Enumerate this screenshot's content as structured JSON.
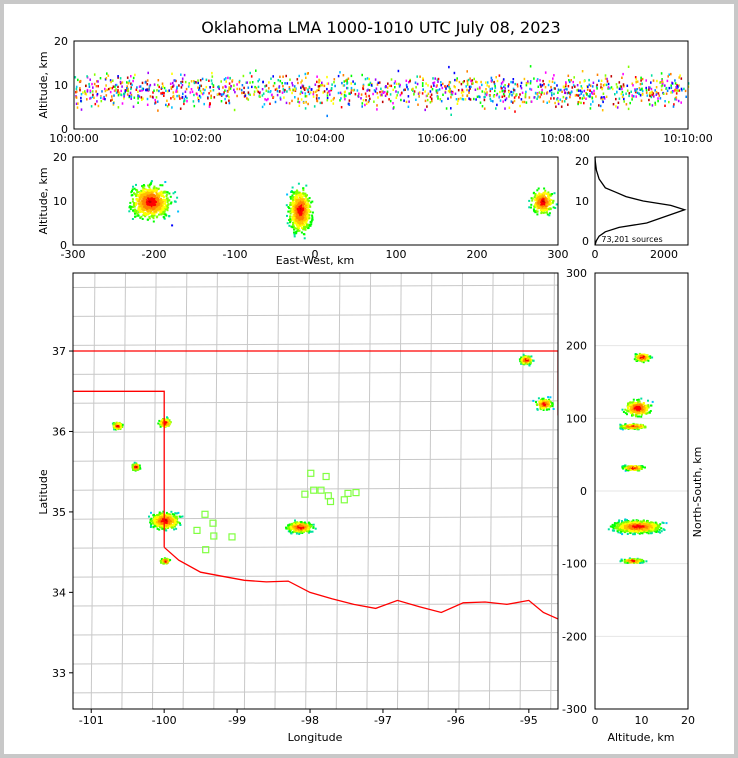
{
  "title": "Oklahoma LMA 1000-1010 UTC July 08, 2023",
  "source_count": "73,201 sources",
  "colors": {
    "state_border": "#ff0000",
    "county_lines": "#c8c8c8",
    "stations": "#80ff40"
  },
  "chart_data": [
    {
      "type": "scatter",
      "panel": "time-altitude",
      "ylabel": "Altitude, km",
      "ylim": [
        0,
        20
      ],
      "yticks": [
        "0",
        "10",
        "20"
      ],
      "xlim": [
        "10:00:00",
        "10:10:00"
      ],
      "xticks": [
        "10:00:00",
        "10:02:00",
        "10:04:00",
        "10:06:00",
        "10:08:00",
        "10:10:00"
      ],
      "description_of_density": "lightning sources continuous across 10:00-10:10, concentrated 4-14 km"
    },
    {
      "type": "heatmap",
      "panel": "east-west-altitude",
      "xlabel": "East-West, km",
      "ylabel": "Altitude, km",
      "xlim": [
        -300,
        300
      ],
      "ylim": [
        0,
        20
      ],
      "xticks": [
        "-300",
        "-200",
        "-100",
        "0",
        "100",
        "200",
        "300"
      ],
      "yticks": [
        "0",
        "10",
        "20"
      ],
      "clusters": [
        {
          "x_center": -205,
          "x_halfwidth": 45,
          "alt_center": 10,
          "alt_halfwidth": 7
        },
        {
          "x_center": -20,
          "x_halfwidth": 25,
          "alt_center": 8,
          "alt_halfwidth": 9
        },
        {
          "x_center": 280,
          "x_halfwidth": 25,
          "alt_center": 10,
          "alt_halfwidth": 5
        }
      ]
    },
    {
      "type": "line",
      "panel": "altitude-histogram",
      "xlim": [
        0,
        2700
      ],
      "ylim": [
        0,
        20
      ],
      "xticks": [
        "0",
        "2000"
      ],
      "yticks": [
        "0",
        "10",
        "20"
      ],
      "x": [
        0,
        40,
        120,
        300,
        700,
        1500,
        2600,
        2200,
        1400,
        900,
        600,
        300,
        120,
        40,
        10,
        0
      ],
      "y": [
        0,
        1,
        2,
        3,
        4,
        5,
        8,
        9,
        10,
        11,
        12,
        13,
        15,
        17,
        19,
        20
      ]
    },
    {
      "type": "heatmap",
      "panel": "plan-view",
      "xlabel": "Longitude",
      "ylabel": "Latitude",
      "xlim": [
        -101.25,
        -94.6
      ],
      "ylim": [
        32.55,
        37.97
      ],
      "xticks": [
        "-101",
        "-100",
        "-99",
        "-98",
        "-97",
        "-96",
        "-95"
      ],
      "yticks": [
        "33",
        "34",
        "35",
        "36",
        "37"
      ],
      "clusters": [
        {
          "lon": -100.0,
          "lat": 34.9,
          "dlon": 0.35,
          "dlat": 0.18
        },
        {
          "lon": -98.15,
          "lat": 34.82,
          "dlon": 0.3,
          "dlat": 0.12
        },
        {
          "lon": -100.0,
          "lat": 36.12,
          "dlon": 0.15,
          "dlat": 0.1
        },
        {
          "lon": -100.4,
          "lat": 35.57,
          "dlon": 0.1,
          "dlat": 0.08
        },
        {
          "lon": -100.65,
          "lat": 36.08,
          "dlon": 0.12,
          "dlat": 0.08
        },
        {
          "lon": -94.8,
          "lat": 36.35,
          "dlon": 0.2,
          "dlat": 0.12
        },
        {
          "lon": -95.05,
          "lat": 36.9,
          "dlon": 0.15,
          "dlat": 0.1
        },
        {
          "lon": -100.0,
          "lat": 34.4,
          "dlon": 0.12,
          "dlat": 0.06
        }
      ],
      "stations": [
        [
          -97.99,
          35.48
        ],
        [
          -97.78,
          35.44
        ],
        [
          -98.07,
          35.22
        ],
        [
          -97.95,
          35.27
        ],
        [
          -97.75,
          35.2
        ],
        [
          -97.72,
          35.13
        ],
        [
          -97.53,
          35.15
        ],
        [
          -97.37,
          35.24
        ],
        [
          -97.48,
          35.23
        ],
        [
          -97.85,
          35.27
        ],
        [
          -99.44,
          34.97
        ],
        [
          -99.33,
          34.86
        ],
        [
          -99.55,
          34.77
        ],
        [
          -99.32,
          34.7
        ],
        [
          -99.43,
          34.53
        ],
        [
          -99.07,
          34.69
        ]
      ]
    },
    {
      "type": "heatmap",
      "panel": "altitude-north-south",
      "xlabel": "Altitude, km",
      "ylabel": "North-South, km",
      "xlim": [
        0,
        20
      ],
      "ylim": [
        -300,
        300
      ],
      "xticks": [
        "0",
        "10",
        "20"
      ],
      "yticks": [
        "-300",
        "-200",
        "-100",
        "0",
        "100",
        "200",
        "300"
      ],
      "clusters": [
        {
          "alt": 9,
          "ns": -48,
          "dalt": 9,
          "dns": 15
        },
        {
          "alt": 9,
          "ns": 115,
          "dalt": 5,
          "dns": 20
        },
        {
          "alt": 8,
          "ns": 33,
          "dalt": 4,
          "dns": 6
        },
        {
          "alt": 8,
          "ns": 90,
          "dalt": 5,
          "dns": 6
        },
        {
          "alt": 8,
          "ns": -95,
          "dalt": 4,
          "dns": 5
        },
        {
          "alt": 10,
          "ns": 185,
          "dalt": 3,
          "dns": 10
        }
      ]
    }
  ]
}
